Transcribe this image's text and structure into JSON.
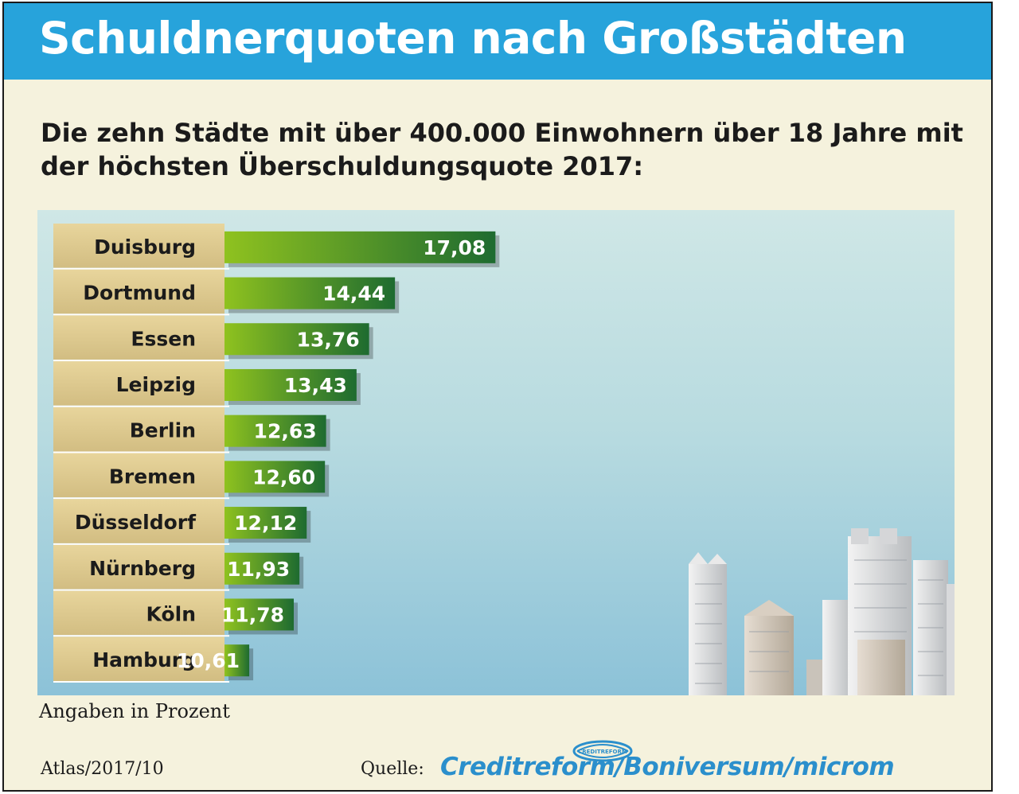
{
  "title": "Schuldnerquoten nach Großstädten",
  "subtitle": "Die zehn Städte mit über 400.000 Einwohnern über 18 Jahre mit der höchsten Überschuldungsquote 2017:",
  "unit_note": "Angaben in Prozent",
  "atlas_ref": "Atlas/2017/10",
  "source_label": "Quelle:",
  "source_name": "Creditreform/Boniversum/microm",
  "logo_text": "CREDITREFORM",
  "colors": {
    "header": "#27a3db",
    "background": "#f5f2dd",
    "label_cell": "#e3cf93",
    "bar_start": "#8fc21f",
    "bar_end": "#1e6b30",
    "source_brand": "#2b8fcc"
  },
  "chart_data": {
    "type": "bar",
    "orientation": "horizontal",
    "categories": [
      "Duisburg",
      "Dortmund",
      "Essen",
      "Leipzig",
      "Berlin",
      "Bremen",
      "Düsseldorf",
      "Nürnberg",
      "Köln",
      "Hamburg"
    ],
    "values": [
      17.08,
      14.44,
      13.76,
      13.43,
      12.63,
      12.6,
      12.12,
      11.93,
      11.78,
      10.61
    ],
    "value_labels": [
      "17,08",
      "14,44",
      "13,76",
      "13,43",
      "12,63",
      "12,60",
      "12,12",
      "11,93",
      "11,78",
      "10,61"
    ],
    "unit": "Prozent",
    "grid": false,
    "legend": "none"
  }
}
